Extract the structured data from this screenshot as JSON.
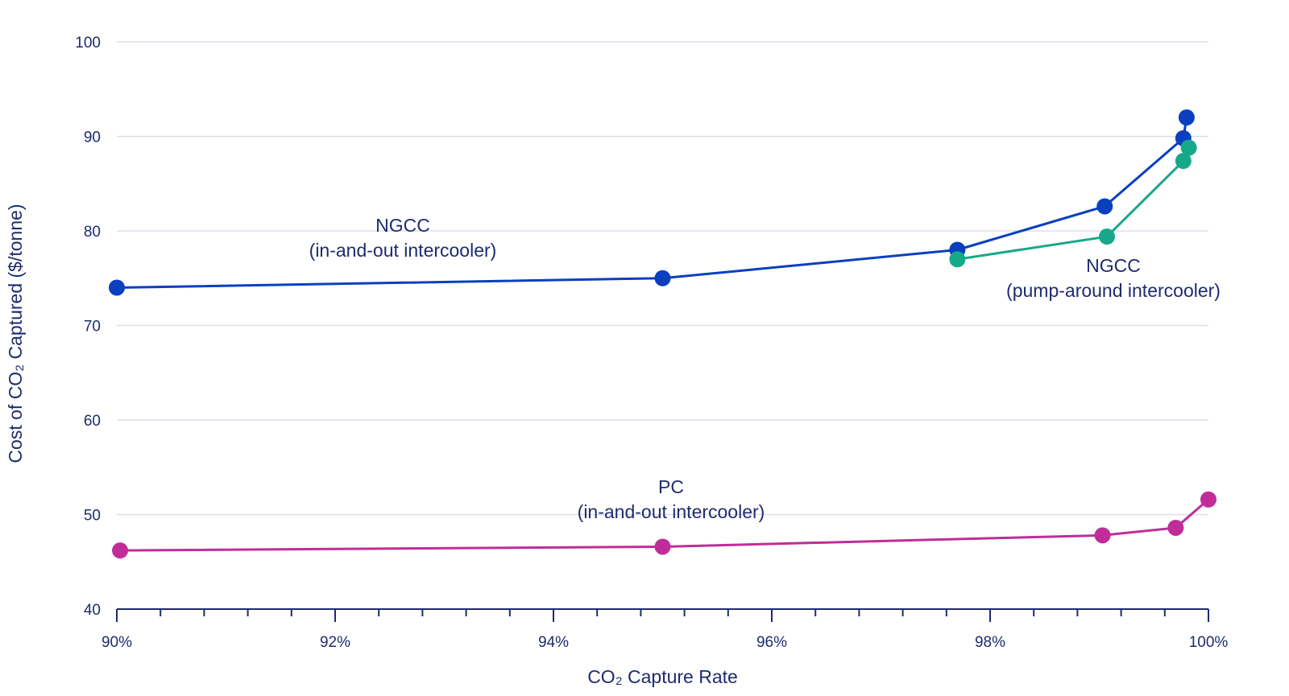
{
  "chart_data": {
    "type": "line",
    "title": "",
    "xlabel": "CO₂ Capture Rate",
    "ylabel": "Cost of CO₂ Captured ($/tonne)",
    "xlim": [
      90,
      100
    ],
    "ylim": [
      40,
      100
    ],
    "x_ticks": [
      {
        "value": 90,
        "label": "90%"
      },
      {
        "value": 92,
        "label": "92%"
      },
      {
        "value": 94,
        "label": "94%"
      },
      {
        "value": 96,
        "label": "96%"
      },
      {
        "value": 98,
        "label": "98%"
      },
      {
        "value": 100,
        "label": "100%"
      }
    ],
    "x_minor_step": 0.4,
    "y_ticks": [
      {
        "value": 40,
        "label": "40"
      },
      {
        "value": 50,
        "label": "50"
      },
      {
        "value": 60,
        "label": "60"
      },
      {
        "value": 70,
        "label": "70"
      },
      {
        "value": 80,
        "label": "80"
      },
      {
        "value": 90,
        "label": "90"
      },
      {
        "value": 100,
        "label": "100"
      }
    ],
    "grid": true,
    "series": [
      {
        "name": "NGCC (in-and-out intercooler)",
        "label_lines": [
          "NGCC",
          "(in-and-out intercooler)"
        ],
        "color": "#0a3fbf",
        "x": [
          90.0,
          95.0,
          97.7,
          99.05,
          99.77,
          99.8
        ],
        "y": [
          74.0,
          75.0,
          78.0,
          82.6,
          89.8,
          92.0
        ]
      },
      {
        "name": "NGCC (pump-around intercooler)",
        "label_lines": [
          "NGCC",
          "(pump-around intercooler)"
        ],
        "color": "#17a88a",
        "x": [
          97.7,
          99.07,
          99.77,
          99.82
        ],
        "y": [
          77.0,
          79.4,
          87.4,
          88.8
        ]
      },
      {
        "name": "PC (in-and-out intercooler)",
        "label_lines": [
          "PC",
          "(in-and-out intercooler)"
        ],
        "color": "#c02d98",
        "x": [
          90.03,
          95.0,
          99.03,
          99.7,
          100.0
        ],
        "y": [
          46.2,
          46.6,
          47.8,
          48.6,
          51.6
        ]
      }
    ]
  }
}
